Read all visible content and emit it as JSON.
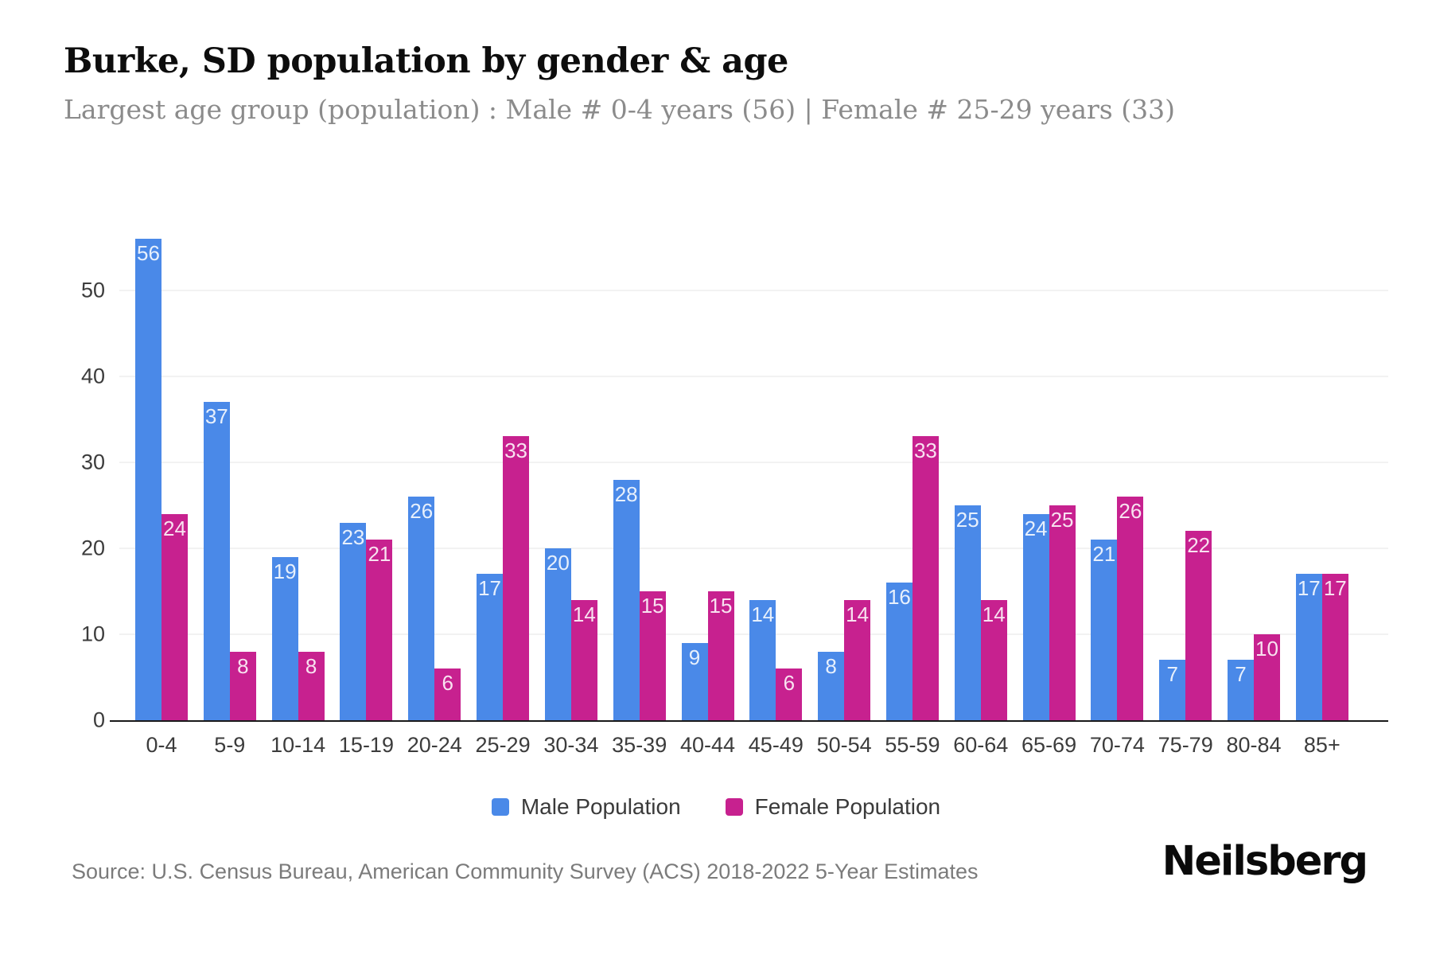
{
  "header": {
    "title": "Burke, SD population by gender & age",
    "subtitle": "Largest age group (population) : Male # 0-4 years (56) | Female # 25-29 years (33)"
  },
  "chart_data": {
    "type": "bar",
    "categories": [
      "0-4",
      "5-9",
      "10-14",
      "15-19",
      "20-24",
      "25-29",
      "30-34",
      "35-39",
      "40-44",
      "45-49",
      "50-54",
      "55-59",
      "60-64",
      "65-69",
      "70-74",
      "75-79",
      "80-84",
      "85+"
    ],
    "series": [
      {
        "name": "Male Population",
        "color": "#4a89e8",
        "values": [
          56,
          37,
          19,
          23,
          26,
          17,
          20,
          28,
          9,
          14,
          8,
          16,
          25,
          24,
          21,
          7,
          7,
          17
        ]
      },
      {
        "name": "Female Population",
        "color": "#c7218f",
        "values": [
          24,
          8,
          8,
          21,
          6,
          33,
          14,
          15,
          15,
          6,
          14,
          33,
          14,
          25,
          26,
          22,
          10,
          17
        ]
      }
    ],
    "title": "Burke, SD population by gender & age",
    "xlabel": "",
    "ylabel": "",
    "y_ticks": [
      0,
      10,
      20,
      30,
      40,
      50
    ],
    "ylim": [
      0,
      56
    ],
    "grid": "horizontal",
    "legend_position": "bottom",
    "value_labels": "inside-top"
  },
  "legend": {
    "male_label": "Male Population",
    "female_label": "Female Population"
  },
  "footer": {
    "source": "Source: U.S. Census Bureau, American Community Survey (ACS) 2018-2022 5-Year Estimates",
    "brand": "Neilsberg"
  },
  "colors": {
    "male": "#4a89e8",
    "female": "#c7218f",
    "baseline": "#1a1a1a",
    "gridline": "#f2f2f2"
  }
}
